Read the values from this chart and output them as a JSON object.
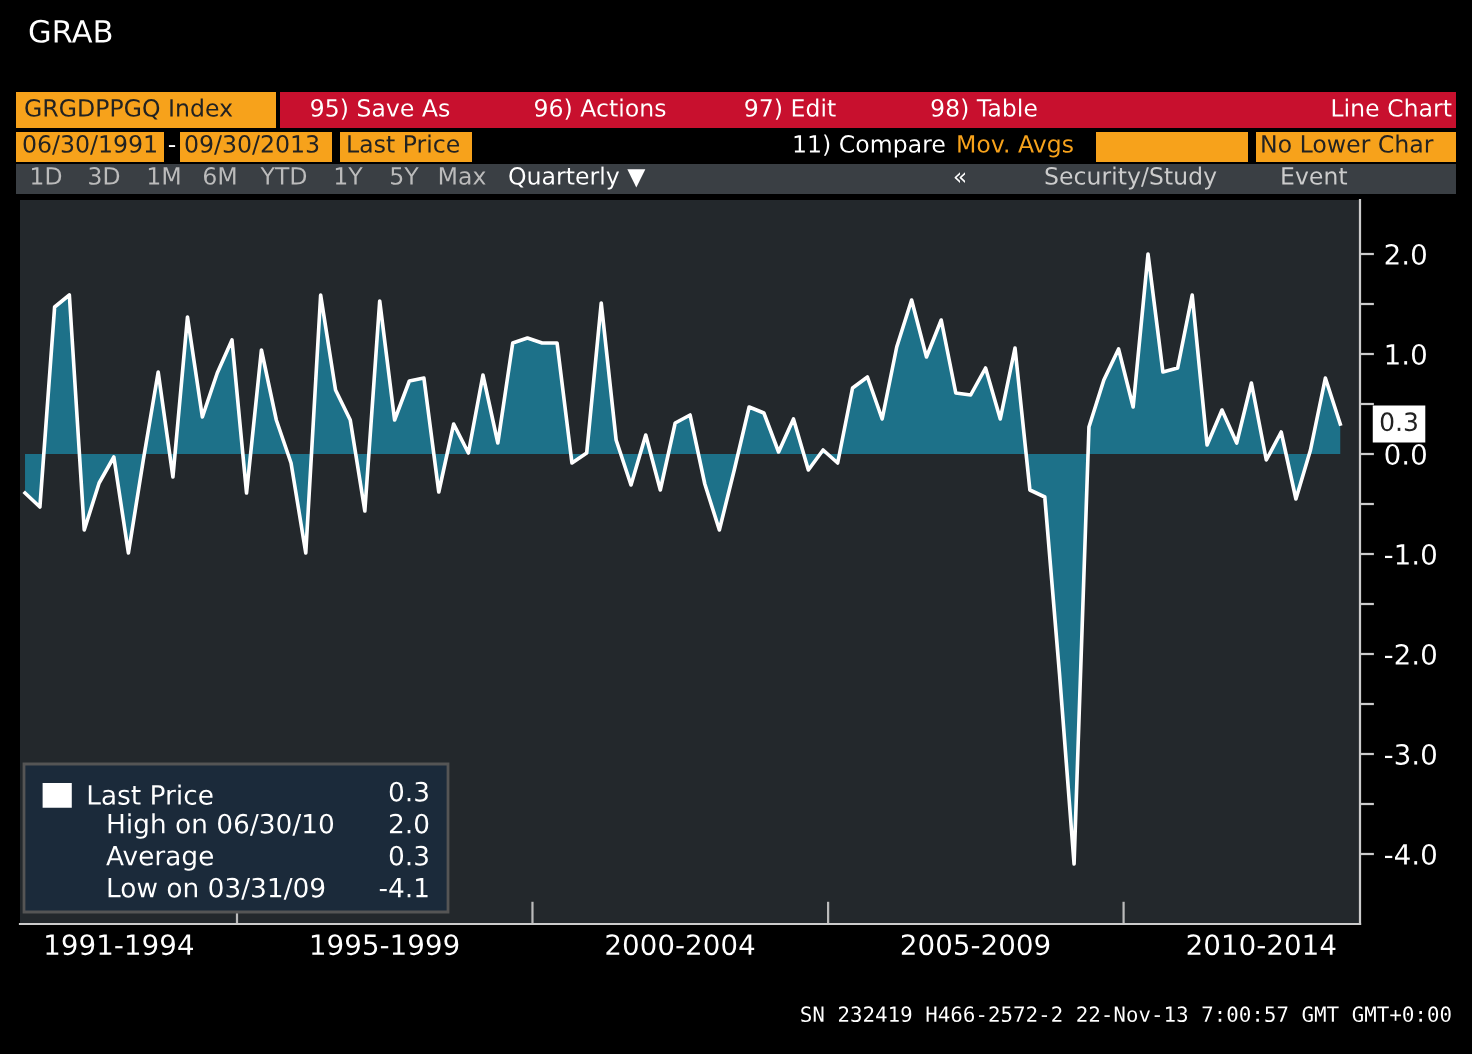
{
  "chart_data": {
    "type": "area",
    "title": "GRAB",
    "x": [
      "1991-06",
      "1991-09",
      "1991-12",
      "1992-03",
      "1992-06",
      "1992-09",
      "1992-12",
      "1993-03",
      "1993-06",
      "1993-09",
      "1993-12",
      "1994-03",
      "1994-06",
      "1994-09",
      "1994-12",
      "1995-03",
      "1995-06",
      "1995-09",
      "1995-12",
      "1996-03",
      "1996-06",
      "1996-09",
      "1996-12",
      "1997-03",
      "1997-06",
      "1997-09",
      "1997-12",
      "1998-03",
      "1998-06",
      "1998-09",
      "1998-12",
      "1999-03",
      "1999-06",
      "1999-09",
      "1999-12",
      "2000-03",
      "2000-06",
      "2000-09",
      "2000-12",
      "2001-03",
      "2001-06",
      "2001-09",
      "2001-12",
      "2002-03",
      "2002-06",
      "2002-09",
      "2002-12",
      "2003-03",
      "2003-06",
      "2003-09",
      "2003-12",
      "2004-03",
      "2004-06",
      "2004-09",
      "2004-12",
      "2005-03",
      "2005-06",
      "2005-09",
      "2005-12",
      "2006-03",
      "2006-06",
      "2006-09",
      "2006-12",
      "2007-03",
      "2007-06",
      "2007-09",
      "2007-12",
      "2008-03",
      "2008-06",
      "2008-09",
      "2008-12",
      "2009-03",
      "2009-06",
      "2009-09",
      "2009-12",
      "2010-03",
      "2010-06",
      "2010-09",
      "2010-12",
      "2011-03",
      "2011-06",
      "2011-09",
      "2011-12",
      "2012-03",
      "2012-06",
      "2012-09",
      "2012-12",
      "2013-03",
      "2013-06",
      "2013-09"
    ],
    "series": [
      {
        "name": "Last Price",
        "color": "#1d7189",
        "values": [
          -0.39,
          -0.53,
          1.47,
          1.59,
          -0.76,
          -0.29,
          -0.03,
          -0.99,
          -0.06,
          0.82,
          -0.23,
          1.37,
          0.37,
          0.81,
          1.14,
          -0.39,
          1.04,
          0.34,
          -0.09,
          -0.99,
          1.59,
          0.64,
          0.34,
          -0.57,
          1.53,
          0.34,
          0.73,
          0.76,
          -0.38,
          0.3,
          0.01,
          0.79,
          0.11,
          1.11,
          1.16,
          1.11,
          1.11,
          -0.09,
          0.01,
          1.51,
          0.14,
          -0.31,
          0.19,
          -0.36,
          0.31,
          0.39,
          -0.3,
          -0.76,
          -0.16,
          0.47,
          0.41,
          0.02,
          0.35,
          -0.16,
          0.04,
          -0.09,
          0.66,
          0.77,
          0.35,
          1.07,
          1.54,
          0.97,
          1.34,
          0.61,
          0.59,
          0.86,
          0.35,
          1.06,
          -0.36,
          -0.43,
          -2.2,
          -4.1,
          0.27,
          0.74,
          1.05,
          0.47,
          2.0,
          0.82,
          0.86,
          1.59,
          0.09,
          0.44,
          0.11,
          0.71,
          -0.06,
          0.22,
          -0.45,
          0.04,
          0.76,
          0.3
        ],
        "value_labels": [
          null,
          null,
          null,
          null,
          null,
          null,
          null,
          null,
          null,
          null,
          null,
          null,
          null,
          null,
          null,
          null,
          null,
          null,
          null,
          null,
          null,
          null,
          null,
          null,
          null,
          null,
          null,
          null,
          null,
          null,
          null,
          null,
          null,
          null,
          null,
          null,
          null,
          null,
          null,
          null,
          null,
          null,
          null,
          null,
          null,
          null,
          null,
          null,
          null,
          null,
          null,
          null,
          null,
          null,
          null,
          null,
          null,
          null,
          null,
          null,
          null,
          null,
          null,
          null,
          null,
          null,
          null,
          null,
          null,
          null,
          null,
          null,
          null,
          null,
          null,
          null,
          null,
          null,
          null,
          null,
          null,
          null,
          null,
          null,
          null,
          null,
          null,
          null,
          null,
          "0.3"
        ]
      }
    ],
    "xlim": [
      "1991-05",
      "2014-01"
    ],
    "xticks": [
      {
        "value": "1993-01",
        "label": "1991-1994"
      },
      {
        "value": "1995-01",
        "label": null
      },
      {
        "value": "1997-07",
        "label": "1995-1999"
      },
      {
        "value": "2000-01",
        "label": null
      },
      {
        "value": "2002-07",
        "label": "2000-2004"
      },
      {
        "value": "2005-01",
        "label": null
      },
      {
        "value": "2007-07",
        "label": "2005-2009"
      },
      {
        "value": "2010-01",
        "label": null
      },
      {
        "value": "2012-05",
        "label": "2010-2014"
      }
    ],
    "ylim": [
      -4.7,
      2.54
    ],
    "yticks": [
      {
        "value": 2,
        "label": "2.0"
      },
      {
        "value": 1.5,
        "label": null
      },
      {
        "value": 1,
        "label": "1.0"
      },
      {
        "value": 0.5,
        "label": null
      },
      {
        "value": 0,
        "label": "0.0"
      },
      {
        "value": -0.5,
        "label": null
      },
      {
        "value": -1,
        "label": "-1.0"
      },
      {
        "value": -1.5,
        "label": null
      },
      {
        "value": -2,
        "label": "-2.0"
      },
      {
        "value": -2.5,
        "label": null
      },
      {
        "value": -3,
        "label": "-3.0"
      },
      {
        "value": -3.5,
        "label": null
      },
      {
        "value": -4,
        "label": "-4.0"
      }
    ],
    "grid": false,
    "legend": "bottom left",
    "annotations": [
      "GRGDPPGQ Index",
      "95) Save As",
      "96) Actions",
      "97) Edit",
      "98) Table",
      "Line Chart",
      "06/30/1991",
      "-",
      "09/30/2013",
      "Last Price",
      "11) Compare",
      "Mov. Avgs",
      "No Lower Char",
      "1D",
      "3D",
      "1M",
      "6M",
      "YTD",
      "1Y",
      "5Y",
      "Max",
      "Quarterly ▼",
      "«",
      "Security/Study",
      "Event",
      "0.3",
      "High on 06/30/10",
      "2.0",
      "Average",
      "0.3",
      "Low on 03/31/09",
      "-4.1",
      "SN 232419 H466-2572-2 22-Nov-13 7:00:57 GMT GMT+0:00"
    ]
  }
}
